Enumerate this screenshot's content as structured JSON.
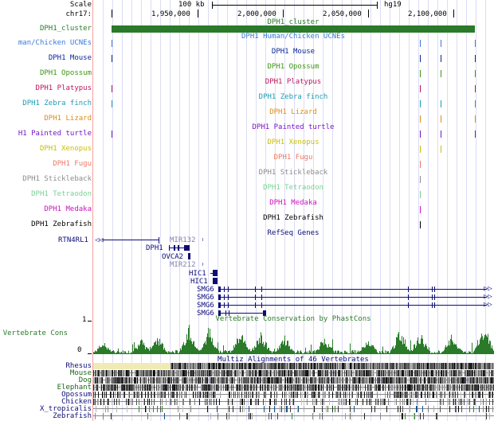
{
  "ruler": {
    "scale_label": "Scale",
    "scale_value": "100 kb",
    "assembly": "hg19",
    "chrom_label": "chr17:",
    "positions": [
      "1,950,000",
      "2,000,000",
      "2,050,000",
      "2,100,000"
    ]
  },
  "tracks": [
    {
      "label": "DPH1_cluster",
      "title": "DPH1_cluster",
      "color": "#2a7a2a"
    },
    {
      "label": "man/Chicken UCNEs",
      "title": "DPH1 Human/Chicken UCNEs",
      "color": "#3c78dc"
    },
    {
      "label": "DPH1 Mouse",
      "title": "DPH1 Mouse",
      "color": "#0a2896"
    },
    {
      "label": "DPH1 Opossum",
      "title": "DPH1 Opossum",
      "color": "#3c9614"
    },
    {
      "label": "DPH1 Platypus",
      "title": "DPH1 Platypus",
      "color": "#be145a"
    },
    {
      "label": "DPH1 Zebra finch",
      "title": "DPH1 Zebra finch",
      "color": "#1e9bb4"
    },
    {
      "label": "DPH1 Lizard",
      "title": "DPH1 Lizard",
      "color": "#dc8c1e"
    },
    {
      "label": "H1 Painted turtle",
      "title": "DPH1 Painted turtle",
      "color": "#7814c8"
    },
    {
      "label": "DPH1 Xenopus",
      "title": "DPH1 Xenopus",
      "color": "#c8be0a"
    },
    {
      "label": "DPH1 Fugu",
      "title": "DPH1 Fugu",
      "color": "#f07864"
    },
    {
      "label": "DPH1 Stickleback",
      "title": "DPH1 Stickleback",
      "color": "#8c8c8c"
    },
    {
      "label": "DPH1 Tetraodon",
      "title": "DPH1 Tetraodon",
      "color": "#78d296"
    },
    {
      "label": "DPH1 Medaka",
      "title": "DPH1 Medaka",
      "color": "#c814be"
    },
    {
      "label": "DPH1 Zebrafish",
      "title": "DPH1 Zebrafish",
      "color": "#000000"
    }
  ],
  "refseq": {
    "title": "RefSeq Genes",
    "genes": [
      "RTN4RL1",
      "MIR132",
      "DPH1",
      "OVCA2",
      "MIR212",
      "HIC1",
      "HIC1",
      "SMG6",
      "SMG6",
      "SMG6",
      "SMG6"
    ]
  },
  "conservation": {
    "label": "Vertebrate Cons",
    "title": "Vertebrate Conservation by PhastCons",
    "ymax": "1",
    "ymin": "0",
    "color": "#2a7a2a"
  },
  "multiz": {
    "title": "Multiz Alignments of 46 Vertebrates",
    "species": [
      {
        "name": "Rhesus",
        "color": "#0c0c78"
      },
      {
        "name": "Mouse",
        "color": "#1e641e"
      },
      {
        "name": "Dog",
        "color": "#1e641e"
      },
      {
        "name": "Elephant",
        "color": "#1e641e"
      },
      {
        "name": "Opossum",
        "color": "#0c0c78"
      },
      {
        "name": "Chicken",
        "color": "#0c0c78"
      },
      {
        "name": "X_tropicalis",
        "color": "#0c0c78"
      },
      {
        "name": "Zebrafish",
        "color": "#0c0c78"
      }
    ]
  }
}
